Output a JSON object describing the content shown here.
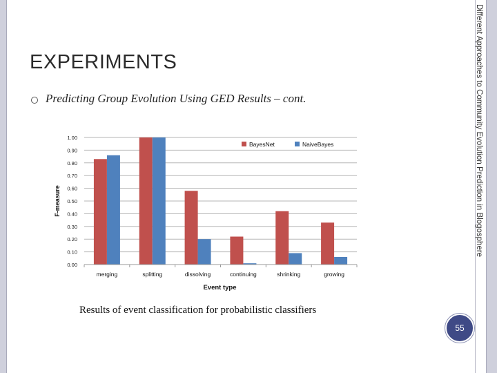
{
  "slide": {
    "title": "EXPERIMENTS",
    "bullet_text": "Predicting Group Evolution Using GED Results – cont.",
    "sidebar_text": "Different Approaches to Community Evolution Prediction in Blogosphere",
    "caption": "Results of event classification for probabilistic classifiers",
    "page_number": "55"
  },
  "chart_data": {
    "type": "bar",
    "categories": [
      "merging",
      "splitting",
      "dissolving",
      "continuing",
      "shrinking",
      "growing"
    ],
    "series": [
      {
        "name": "BayesNet",
        "color": "#c0504d",
        "values": [
          0.83,
          1.0,
          0.58,
          0.22,
          0.42,
          0.33
        ]
      },
      {
        "name": "NaiveBayes",
        "color": "#4f81bd",
        "values": [
          0.86,
          1.0,
          0.2,
          0.01,
          0.09,
          0.06
        ]
      }
    ],
    "xlabel": "Event type",
    "ylabel": "F-measure",
    "ylim": [
      0,
      1
    ],
    "yticks": [
      "0.00",
      "0.10",
      "0.20",
      "0.30",
      "0.40",
      "0.50",
      "0.60",
      "0.70",
      "0.80",
      "0.90",
      "1.00"
    ],
    "grid": true,
    "legend_position": "top-right"
  }
}
